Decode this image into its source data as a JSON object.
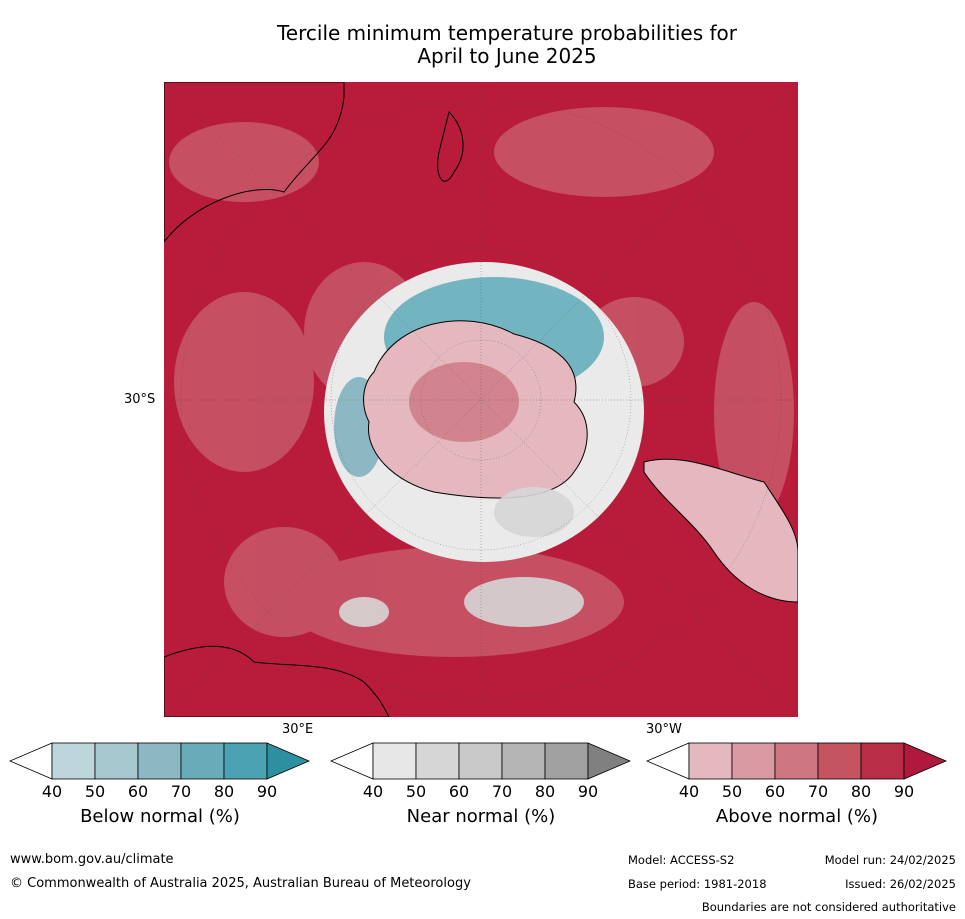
{
  "title_line1": "Tercile minimum temperature probabilities for",
  "title_line2": "April to June 2025",
  "map": {
    "lat_label": "30°S",
    "lon_labels": {
      "east": "30°E",
      "west": "30°W"
    },
    "colors": {
      "above_dominant": "#b81c3a",
      "above_mid": "#c8586a",
      "above_light": "#e4b8be",
      "near_light": "#e6e6e6",
      "near_mid": "#c8c8c8",
      "below_light": "#bcd6dc",
      "below_mid": "#4aa2b2"
    }
  },
  "colorbars": [
    {
      "id": "below",
      "label": "Below normal (%)",
      "ticks": [
        "40",
        "50",
        "60",
        "70",
        "80",
        "90"
      ],
      "colors": [
        "#ffffff",
        "#bcd6dc",
        "#a6c7cd",
        "#8bb8c3",
        "#6aabb9",
        "#4aa2b2",
        "#2e8fa0"
      ]
    },
    {
      "id": "near",
      "label": "Near normal (%)",
      "ticks": [
        "40",
        "50",
        "60",
        "70",
        "80",
        "90"
      ],
      "colors": [
        "#ffffff",
        "#e6e6e6",
        "#d6d6d6",
        "#c8c8c8",
        "#b4b4b4",
        "#a0a0a0",
        "#808080"
      ]
    },
    {
      "id": "above",
      "label": "Above normal (%)",
      "ticks": [
        "40",
        "50",
        "60",
        "70",
        "80",
        "90"
      ],
      "colors": [
        "#ffffff",
        "#e4b8be",
        "#d99aa3",
        "#cd7782",
        "#c4545f",
        "#b92e46",
        "#b0193b"
      ]
    }
  ],
  "footer": {
    "website": "www.bom.gov.au/climate",
    "copyright": "© Commonwealth of Australia 2025, Australian Bureau of Meteorology",
    "model": "Model: ACCESS-S2",
    "model_run": "Model run: 24/02/2025",
    "base_period": "Base period: 1981-2018",
    "issued": "Issued: 26/02/2025",
    "disclaimer": "Boundaries are not considered authoritative"
  }
}
